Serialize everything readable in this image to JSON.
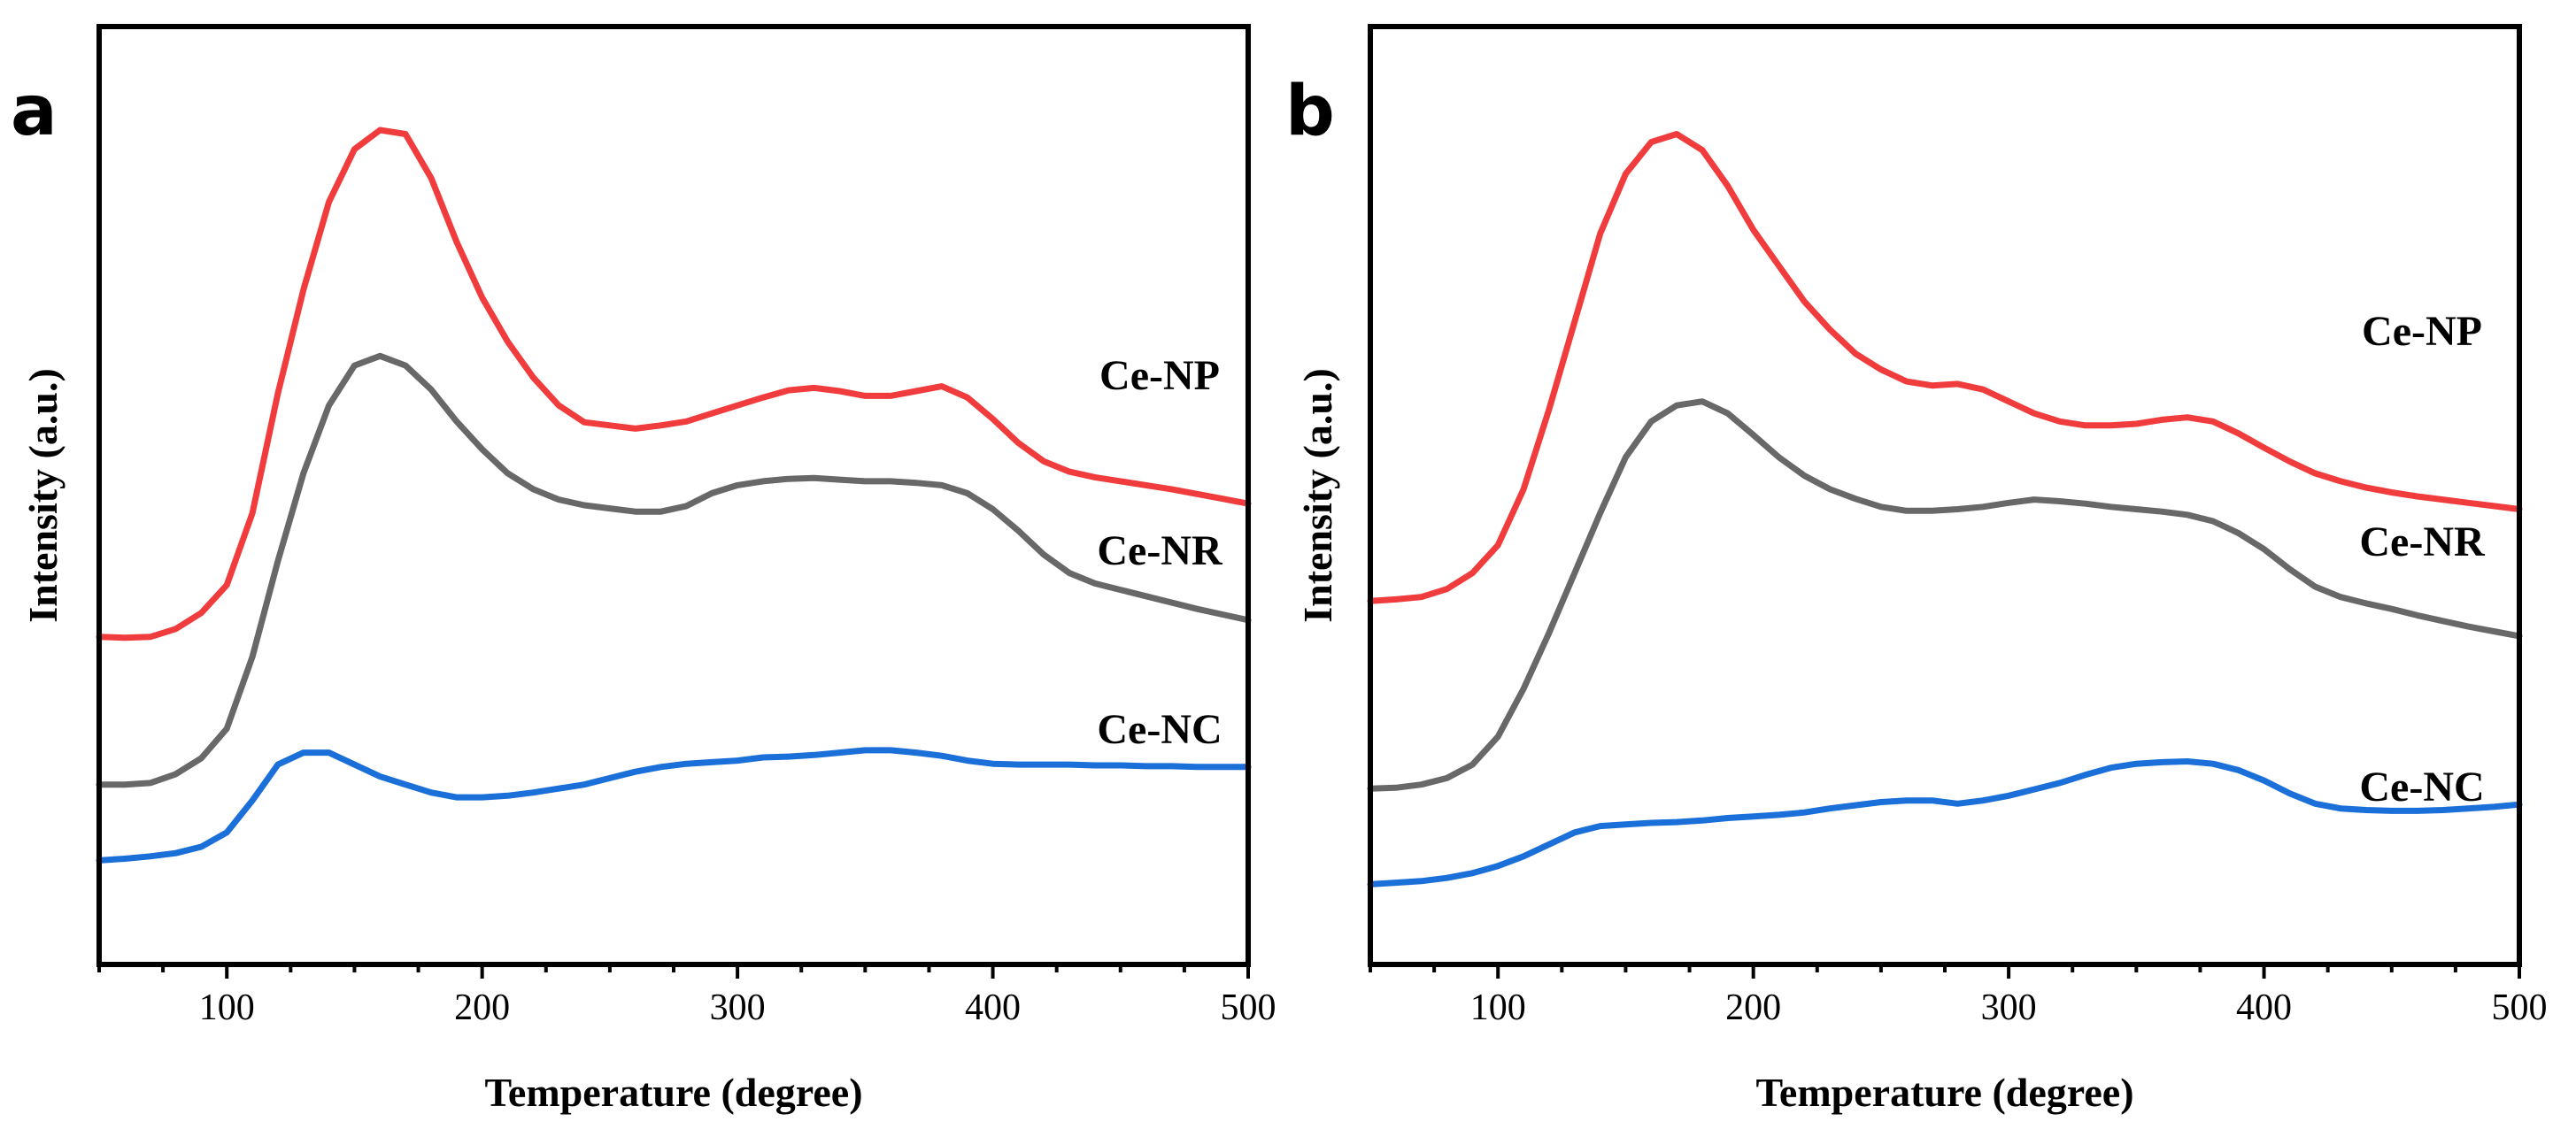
{
  "chart_data": [
    {
      "type": "line",
      "panel": "a",
      "xlabel": "Temperature (degree)",
      "ylabel": "Intensity (a.u.)",
      "xlim": [
        50,
        500
      ],
      "ylim": [
        0,
        100
      ],
      "xticks": [
        100,
        200,
        300,
        400,
        500
      ],
      "series": [
        {
          "name": "Ce-NP",
          "color": "#f03c3c",
          "x": [
            50,
            60,
            70,
            80,
            90,
            100,
            110,
            120,
            130,
            140,
            150,
            160,
            170,
            180,
            190,
            200,
            210,
            220,
            230,
            240,
            250,
            260,
            270,
            280,
            290,
            300,
            310,
            320,
            330,
            340,
            350,
            360,
            370,
            380,
            390,
            400,
            410,
            420,
            430,
            440,
            450,
            460,
            470,
            480,
            490,
            500
          ],
          "y": [
            35.5,
            35.4,
            35.5,
            36.5,
            38.5,
            42,
            51,
            66,
            79,
            90,
            96.6,
            99,
            98.5,
            93,
            85,
            78,
            72.5,
            68,
            64.5,
            62.4,
            62,
            61.6,
            62,
            62.5,
            63.5,
            64.5,
            65.5,
            66.4,
            66.7,
            66.3,
            65.7,
            65.7,
            66.3,
            66.9,
            65.5,
            62.8,
            59.8,
            57.5,
            56.2,
            55.5,
            55,
            54.5,
            54,
            53.4,
            52.8,
            52.2
          ]
        },
        {
          "name": "Ce-NR",
          "color": "#686868",
          "x": [
            50,
            60,
            70,
            80,
            90,
            100,
            110,
            120,
            130,
            140,
            150,
            160,
            170,
            180,
            190,
            200,
            210,
            220,
            230,
            240,
            250,
            260,
            270,
            280,
            290,
            300,
            310,
            320,
            330,
            340,
            350,
            360,
            370,
            380,
            390,
            400,
            410,
            420,
            430,
            440,
            450,
            460,
            470,
            480,
            490,
            500
          ],
          "y": [
            17,
            17,
            17.2,
            18.3,
            20.3,
            24,
            33,
            45,
            56,
            64.5,
            69.5,
            70.7,
            69.5,
            66.5,
            62.5,
            59,
            56,
            54,
            52.7,
            52,
            51.6,
            51.2,
            51.2,
            51.9,
            53.5,
            54.5,
            55,
            55.3,
            55.4,
            55.2,
            55,
            55,
            54.8,
            54.5,
            53.5,
            51.5,
            48.8,
            45.8,
            43.5,
            42.2,
            41.4,
            40.6,
            39.8,
            39,
            38.3,
            37.6
          ]
        },
        {
          "name": "Ce-NC",
          "color": "#1a6fd8",
          "x": [
            50,
            60,
            70,
            80,
            90,
            100,
            110,
            120,
            130,
            140,
            150,
            160,
            170,
            180,
            190,
            200,
            210,
            220,
            230,
            240,
            250,
            260,
            270,
            280,
            290,
            300,
            310,
            320,
            330,
            340,
            350,
            360,
            370,
            380,
            390,
            400,
            410,
            420,
            430,
            440,
            450,
            460,
            470,
            480,
            490,
            500
          ],
          "y": [
            7.5,
            7.7,
            8,
            8.4,
            9.2,
            11,
            15,
            19.5,
            21,
            21,
            19.5,
            18,
            17,
            16,
            15.4,
            15.4,
            15.6,
            16,
            16.5,
            17,
            17.8,
            18.6,
            19.2,
            19.6,
            19.8,
            20,
            20.4,
            20.5,
            20.7,
            21,
            21.3,
            21.3,
            21,
            20.6,
            20,
            19.6,
            19.5,
            19.5,
            19.5,
            19.4,
            19.4,
            19.3,
            19.3,
            19.2,
            19.2,
            19.2
          ]
        }
      ]
    },
    {
      "type": "line",
      "panel": "b",
      "xlabel": "Temperature (degree)",
      "ylabel": "Intensity (a.u.)",
      "xlim": [
        50,
        500
      ],
      "ylim": [
        0,
        100
      ],
      "xticks": [
        100,
        200,
        300,
        400,
        500
      ],
      "series": [
        {
          "name": "Ce-NP",
          "color": "#f03c3c",
          "x": [
            50,
            60,
            70,
            80,
            90,
            100,
            110,
            120,
            130,
            140,
            150,
            160,
            170,
            180,
            190,
            200,
            210,
            220,
            230,
            240,
            250,
            260,
            270,
            280,
            290,
            300,
            310,
            320,
            330,
            340,
            350,
            360,
            370,
            380,
            390,
            400,
            410,
            420,
            430,
            440,
            450,
            460,
            470,
            480,
            490,
            500
          ],
          "y": [
            40,
            40.2,
            40.5,
            41.5,
            43.5,
            47,
            54,
            64,
            75,
            86,
            93.5,
            97.5,
            98.5,
            96.5,
            92,
            86.5,
            82,
            77.5,
            74,
            71,
            69,
            67.5,
            67,
            67.2,
            66.5,
            65,
            63.5,
            62.5,
            62,
            62,
            62.2,
            62.7,
            63,
            62.5,
            61,
            59.2,
            57.5,
            56,
            55,
            54.2,
            53.6,
            53.1,
            52.7,
            52.3,
            51.9,
            51.5
          ]
        },
        {
          "name": "Ce-NR",
          "color": "#686868",
          "x": [
            50,
            60,
            70,
            80,
            90,
            100,
            110,
            120,
            130,
            140,
            150,
            160,
            170,
            180,
            190,
            200,
            210,
            220,
            230,
            240,
            250,
            260,
            270,
            280,
            290,
            300,
            310,
            320,
            330,
            340,
            350,
            360,
            370,
            380,
            390,
            400,
            410,
            420,
            430,
            440,
            450,
            460,
            470,
            480,
            490,
            500
          ],
          "y": [
            16.5,
            16.6,
            17,
            17.8,
            19.5,
            23,
            29,
            36,
            43.5,
            51,
            58,
            62.5,
            64.5,
            65,
            63.5,
            60.8,
            58,
            55.7,
            54,
            52.8,
            51.8,
            51.3,
            51.3,
            51.5,
            51.8,
            52.3,
            52.7,
            52.5,
            52.2,
            51.8,
            51.5,
            51.2,
            50.8,
            50,
            48.5,
            46.5,
            44,
            41.8,
            40.5,
            39.7,
            39,
            38.2,
            37.5,
            36.8,
            36.2,
            35.6
          ]
        },
        {
          "name": "Ce-NC",
          "color": "#1a6fd8",
          "x": [
            50,
            60,
            70,
            80,
            90,
            100,
            110,
            120,
            130,
            140,
            150,
            160,
            170,
            180,
            190,
            200,
            210,
            220,
            230,
            240,
            250,
            260,
            270,
            280,
            290,
            300,
            310,
            320,
            330,
            340,
            350,
            360,
            370,
            380,
            390,
            400,
            410,
            420,
            430,
            440,
            450,
            460,
            470,
            480,
            490,
            500
          ],
          "y": [
            4.5,
            4.7,
            4.9,
            5.3,
            5.9,
            6.8,
            8,
            9.5,
            11,
            11.8,
            12,
            12.2,
            12.3,
            12.5,
            12.8,
            13,
            13.2,
            13.5,
            14,
            14.4,
            14.8,
            15,
            15,
            14.6,
            15,
            15.6,
            16.4,
            17.2,
            18.2,
            19.1,
            19.6,
            19.8,
            19.9,
            19.6,
            18.8,
            17.5,
            15.9,
            14.6,
            14,
            13.8,
            13.7,
            13.7,
            13.8,
            14,
            14.2,
            14.5
          ]
        }
      ]
    }
  ]
}
